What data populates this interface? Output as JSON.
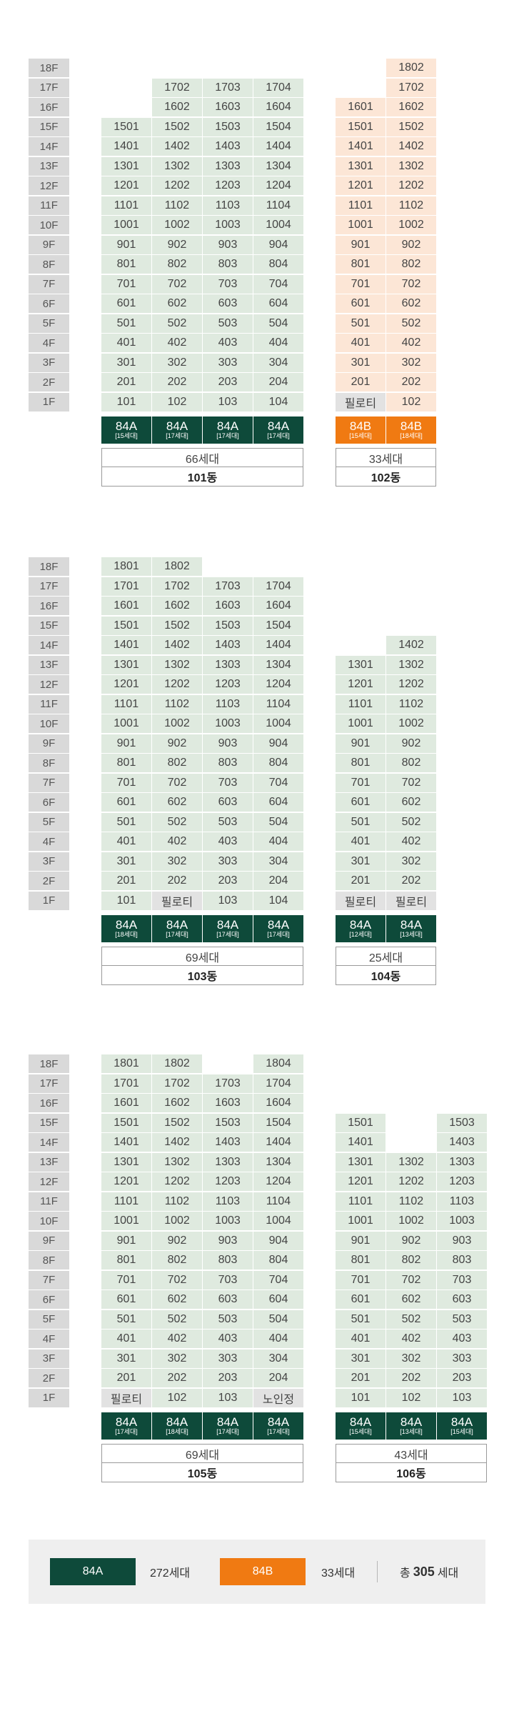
{
  "blocks": [
    {
      "floors": [
        "18F",
        "17F",
        "16F",
        "15F",
        "14F",
        "13F",
        "12F",
        "11F",
        "10F",
        "9F",
        "8F",
        "7F",
        "6F",
        "5F",
        "4F",
        "3F",
        "2F",
        "1F"
      ],
      "buildings": [
        {
          "name": "101동",
          "total": "66세대",
          "cells": [
            [
              "",
              "",
              "",
              ""
            ],
            [
              "",
              "1702",
              "1703",
              "1704"
            ],
            [
              "",
              "1602",
              "1603",
              "1604"
            ],
            [
              "1501",
              "1502",
              "1503",
              "1504"
            ],
            [
              "1401",
              "1402",
              "1403",
              "1404"
            ],
            [
              "1301",
              "1302",
              "1303",
              "1304"
            ],
            [
              "1201",
              "1202",
              "1203",
              "1204"
            ],
            [
              "1101",
              "1102",
              "1103",
              "1104"
            ],
            [
              "1001",
              "1002",
              "1003",
              "1004"
            ],
            [
              "901",
              "902",
              "903",
              "904"
            ],
            [
              "801",
              "802",
              "803",
              "804"
            ],
            [
              "701",
              "702",
              "703",
              "704"
            ],
            [
              "601",
              "602",
              "603",
              "604"
            ],
            [
              "501",
              "502",
              "503",
              "504"
            ],
            [
              "401",
              "402",
              "403",
              "404"
            ],
            [
              "301",
              "302",
              "303",
              "304"
            ],
            [
              "201",
              "202",
              "203",
              "204"
            ],
            [
              "101",
              "102",
              "103",
              "104"
            ]
          ],
          "types": [
            {
              "label": "84A",
              "count": "[15세대]",
              "color": "green"
            },
            {
              "label": "84A",
              "count": "[17세대]",
              "color": "green"
            },
            {
              "label": "84A",
              "count": "[17세대]",
              "color": "green"
            },
            {
              "label": "84A",
              "count": "[17세대]",
              "color": "green"
            }
          ]
        },
        {
          "name": "102동",
          "total": "33세대",
          "cells": [
            [
              "",
              "1802"
            ],
            [
              "",
              "1702"
            ],
            [
              "1601",
              "1602"
            ],
            [
              "1501",
              "1502"
            ],
            [
              "1401",
              "1402"
            ],
            [
              "1301",
              "1302"
            ],
            [
              "1201",
              "1202"
            ],
            [
              "1101",
              "1102"
            ],
            [
              "1001",
              "1002"
            ],
            [
              "901",
              "902"
            ],
            [
              "801",
              "802"
            ],
            [
              "701",
              "702"
            ],
            [
              "601",
              "602"
            ],
            [
              "501",
              "502"
            ],
            [
              "401",
              "402"
            ],
            [
              "301",
              "302"
            ],
            [
              "201",
              "202"
            ],
            [
              "필로티",
              "102"
            ]
          ],
          "types": [
            {
              "label": "84B",
              "count": "[15세대]",
              "color": "orange"
            },
            {
              "label": "84B",
              "count": "[18세대]",
              "color": "orange"
            }
          ]
        }
      ]
    },
    {
      "floors": [
        "18F",
        "17F",
        "16F",
        "15F",
        "14F",
        "13F",
        "12F",
        "11F",
        "10F",
        "9F",
        "8F",
        "7F",
        "6F",
        "5F",
        "4F",
        "3F",
        "2F",
        "1F"
      ],
      "buildings": [
        {
          "name": "103동",
          "total": "69세대",
          "cells": [
            [
              "1801",
              "1802",
              "",
              ""
            ],
            [
              "1701",
              "1702",
              "1703",
              "1704"
            ],
            [
              "1601",
              "1602",
              "1603",
              "1604"
            ],
            [
              "1501",
              "1502",
              "1503",
              "1504"
            ],
            [
              "1401",
              "1402",
              "1403",
              "1404"
            ],
            [
              "1301",
              "1302",
              "1303",
              "1304"
            ],
            [
              "1201",
              "1202",
              "1203",
              "1204"
            ],
            [
              "1101",
              "1102",
              "1103",
              "1104"
            ],
            [
              "1001",
              "1002",
              "1003",
              "1004"
            ],
            [
              "901",
              "902",
              "903",
              "904"
            ],
            [
              "801",
              "802",
              "803",
              "804"
            ],
            [
              "701",
              "702",
              "703",
              "704"
            ],
            [
              "601",
              "602",
              "603",
              "604"
            ],
            [
              "501",
              "502",
              "503",
              "504"
            ],
            [
              "401",
              "402",
              "403",
              "404"
            ],
            [
              "301",
              "302",
              "303",
              "304"
            ],
            [
              "201",
              "202",
              "203",
              "204"
            ],
            [
              "101",
              "필로티",
              "103",
              "104"
            ]
          ],
          "types": [
            {
              "label": "84A",
              "count": "[18세대]",
              "color": "green"
            },
            {
              "label": "84A",
              "count": "[17세대]",
              "color": "green"
            },
            {
              "label": "84A",
              "count": "[17세대]",
              "color": "green"
            },
            {
              "label": "84A",
              "count": "[17세대]",
              "color": "green"
            }
          ]
        },
        {
          "name": "104동",
          "total": "25세대",
          "cells": [
            [
              "",
              ""
            ],
            [
              "",
              ""
            ],
            [
              "",
              ""
            ],
            [
              "",
              ""
            ],
            [
              "",
              "1402"
            ],
            [
              "1301",
              "1302"
            ],
            [
              "1201",
              "1202"
            ],
            [
              "1101",
              "1102"
            ],
            [
              "1001",
              "1002"
            ],
            [
              "901",
              "902"
            ],
            [
              "801",
              "802"
            ],
            [
              "701",
              "702"
            ],
            [
              "601",
              "602"
            ],
            [
              "501",
              "502"
            ],
            [
              "401",
              "402"
            ],
            [
              "301",
              "302"
            ],
            [
              "201",
              "202"
            ],
            [
              "필로티",
              "필로티"
            ]
          ],
          "types": [
            {
              "label": "84A",
              "count": "[12세대]",
              "color": "green"
            },
            {
              "label": "84A",
              "count": "[13세대]",
              "color": "green"
            }
          ]
        }
      ]
    },
    {
      "floors": [
        "18F",
        "17F",
        "16F",
        "15F",
        "14F",
        "13F",
        "12F",
        "11F",
        "10F",
        "9F",
        "8F",
        "7F",
        "6F",
        "5F",
        "4F",
        "3F",
        "2F",
        "1F"
      ],
      "buildings": [
        {
          "name": "105동",
          "total": "69세대",
          "cells": [
            [
              "1801",
              "1802",
              "",
              "1804"
            ],
            [
              "1701",
              "1702",
              "1703",
              "1704"
            ],
            [
              "1601",
              "1602",
              "1603",
              "1604"
            ],
            [
              "1501",
              "1502",
              "1503",
              "1504"
            ],
            [
              "1401",
              "1402",
              "1403",
              "1404"
            ],
            [
              "1301",
              "1302",
              "1303",
              "1304"
            ],
            [
              "1201",
              "1202",
              "1203",
              "1204"
            ],
            [
              "1101",
              "1102",
              "1103",
              "1104"
            ],
            [
              "1001",
              "1002",
              "1003",
              "1004"
            ],
            [
              "901",
              "902",
              "903",
              "904"
            ],
            [
              "801",
              "802",
              "803",
              "804"
            ],
            [
              "701",
              "702",
              "703",
              "704"
            ],
            [
              "601",
              "602",
              "603",
              "604"
            ],
            [
              "501",
              "502",
              "503",
              "504"
            ],
            [
              "401",
              "402",
              "403",
              "404"
            ],
            [
              "301",
              "302",
              "303",
              "304"
            ],
            [
              "201",
              "202",
              "203",
              "204"
            ],
            [
              "필로티",
              "102",
              "103",
              "노인정"
            ]
          ],
          "types": [
            {
              "label": "84A",
              "count": "[17세대]",
              "color": "green"
            },
            {
              "label": "84A",
              "count": "[18세대]",
              "color": "green"
            },
            {
              "label": "84A",
              "count": "[17세대]",
              "color": "green"
            },
            {
              "label": "84A",
              "count": "[17세대]",
              "color": "green"
            }
          ]
        },
        {
          "name": "106동",
          "total": "43세대",
          "cells": [
            [
              "",
              "",
              ""
            ],
            [
              "",
              "",
              ""
            ],
            [
              "",
              "",
              ""
            ],
            [
              "1501",
              "",
              "1503"
            ],
            [
              "1401",
              "",
              "1403"
            ],
            [
              "1301",
              "1302",
              "1303"
            ],
            [
              "1201",
              "1202",
              "1203"
            ],
            [
              "1101",
              "1102",
              "1103"
            ],
            [
              "1001",
              "1002",
              "1003"
            ],
            [
              "901",
              "902",
              "903"
            ],
            [
              "801",
              "802",
              "803"
            ],
            [
              "701",
              "702",
              "703"
            ],
            [
              "601",
              "602",
              "603"
            ],
            [
              "501",
              "502",
              "503"
            ],
            [
              "401",
              "402",
              "403"
            ],
            [
              "301",
              "302",
              "303"
            ],
            [
              "201",
              "202",
              "203"
            ],
            [
              "101",
              "102",
              "103"
            ]
          ],
          "types": [
            {
              "label": "84A",
              "count": "[15세대]",
              "color": "green"
            },
            {
              "label": "84A",
              "count": "[13세대]",
              "color": "green"
            },
            {
              "label": "84A",
              "count": "[15세대]",
              "color": "green"
            }
          ]
        }
      ]
    }
  ],
  "special_units": [
    "필로티",
    "노인정"
  ],
  "legend": {
    "type_a": "84A",
    "type_a_count": "272세대",
    "type_b": "84B",
    "type_b_count": "33세대",
    "total_label": "총",
    "total_value": "305",
    "total_unit": "세대"
  },
  "colors": {
    "type_a": "#0e4a3a",
    "type_b": "#f07a12",
    "unit_green": "#dfeadf",
    "unit_peach": "#fce6d6",
    "unit_gray": "#e2e2e2",
    "floor_label": "#d9d9d9"
  }
}
